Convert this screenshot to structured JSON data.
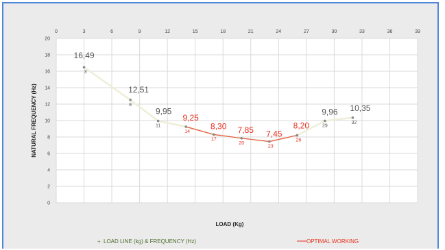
{
  "chart_data": {
    "type": "line",
    "title": "",
    "xlabel": "LOAD (Kg)",
    "ylabel": "NATURAL FREQUENCY (Hz)",
    "xlim": [
      0,
      39
    ],
    "ylim": [
      0,
      20
    ],
    "x_ticks": [
      "0",
      "3",
      "6",
      "9",
      "12",
      "15",
      "18",
      "21",
      "24",
      "27",
      "30",
      "33",
      "36",
      "39"
    ],
    "y_ticks": [
      "0",
      "2",
      "4",
      "6",
      "8",
      "10",
      "12",
      "14",
      "16",
      "18",
      "20"
    ],
    "grid": true,
    "x_tick_position": "top",
    "legend_position": "bottom",
    "series": [
      {
        "name": "LOAD LINE (kg) & FREQUENCY (Hz)",
        "color": "#eeeed8",
        "x": [
          3,
          8,
          11,
          14,
          17,
          20,
          23,
          26,
          29,
          32
        ],
        "y": [
          16.49,
          12.51,
          9.95,
          9.25,
          8.3,
          7.85,
          7.45,
          8.2,
          9.96,
          10.35
        ],
        "value_labels": [
          "16,49",
          "12,51",
          "9,95",
          "9,25",
          "8,30",
          "7,85",
          "7,45",
          "8,20",
          "9,96",
          "10,35"
        ],
        "point_labels": [
          "3",
          "8",
          "11",
          "14",
          "17",
          "20",
          "23",
          "26",
          "29",
          "32"
        ]
      },
      {
        "name": "OPTIMAL WORKING",
        "color": "#e6301e",
        "x": [
          14,
          17,
          20,
          23,
          26
        ],
        "y": [
          9.25,
          8.3,
          7.85,
          7.45,
          8.2
        ]
      }
    ],
    "label_colors": {
      "normal": "#555555",
      "optimal": "#e6301e"
    }
  }
}
